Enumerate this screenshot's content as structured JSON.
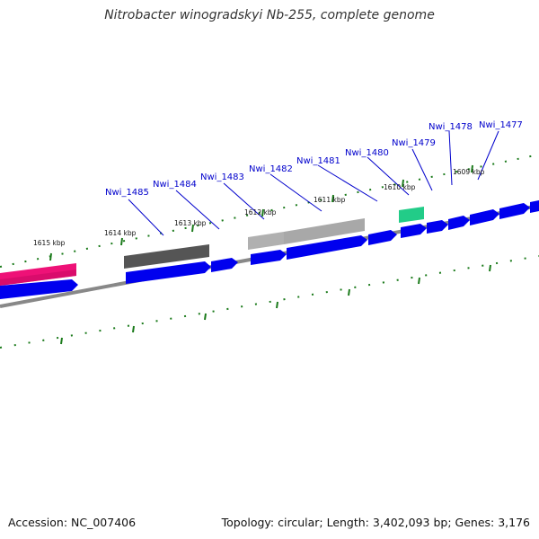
{
  "title": "Nitrobacter winogradskyi Nb-255, complete genome",
  "footer": {
    "accession": "Accession: NC_007406",
    "summary": "Topology: circular; Length: 3,402,093 bp; Genes: 3,176"
  },
  "ruler_labels": [
    "1615 kbp",
    "1614 kbp",
    "1613 kbp",
    "1612 kbp",
    "1611 kbp",
    "1610 kbp",
    "1609 kbp"
  ],
  "gene_labels": [
    "Nwi_1485",
    "Nwi_1484",
    "Nwi_1483",
    "Nwi_1482",
    "Nwi_1481",
    "Nwi_1480",
    "Nwi_1479",
    "Nwi_1478",
    "Nwi_1477"
  ],
  "colors": {
    "cds": "#0000ee",
    "label": "#0000cc",
    "ticks": "#1a7a1a",
    "backbone": "#888888",
    "pink_feature": "#ee1177",
    "dark_feature": "#555555",
    "light_feature": "#aaaaaa",
    "teal_feature": "#22cc88"
  }
}
